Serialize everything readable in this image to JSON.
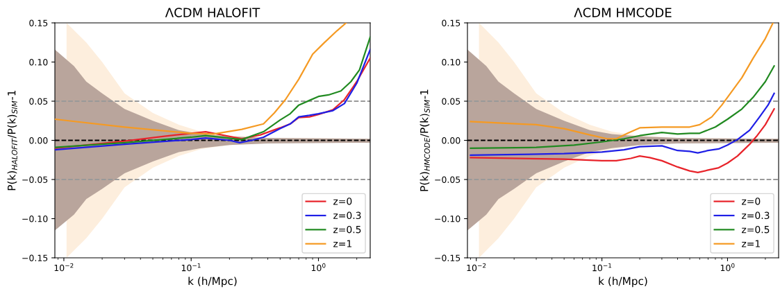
{
  "chart_data": [
    {
      "type": "line",
      "title": "ΛCDM HALOFIT",
      "xlabel": "k (h/Mpc)",
      "ylabel": "P(k)$_{HALOFIT}$/P(k)$_{SIM}$-1",
      "log": "x",
      "xlim": [
        0.0085,
        2.55
      ],
      "ylim": [
        -0.15,
        0.15
      ],
      "xticks": [
        {
          "value": 0.01,
          "label": "10$^{−2}$"
        },
        {
          "value": 0.1,
          "label": "10$^{−1}$"
        },
        {
          "value": 1,
          "label": "10$^{0}$"
        }
      ],
      "yticks": [
        {
          "value": -0.15,
          "label": "−0.15"
        },
        {
          "value": -0.1,
          "label": "−0.10"
        },
        {
          "value": -0.05,
          "label": "−0.05"
        },
        {
          "value": 0,
          "label": "0.00"
        },
        {
          "value": 0.05,
          "label": "0.05"
        },
        {
          "value": 0.1,
          "label": "0.10"
        },
        {
          "value": 0.15,
          "label": "0.15"
        }
      ],
      "legend": "lower right",
      "grid": false,
      "ref_lines": [
        {
          "axis": "y",
          "value": 0,
          "color": "#000000",
          "line_style": "dashed"
        },
        {
          "axis": "y",
          "value": 0.05,
          "color": "#999999",
          "line_style": "dashed"
        },
        {
          "axis": "y",
          "value": -0.05,
          "color": "#999999",
          "line_style": "dashed"
        }
      ],
      "series": [
        {
          "type": "area",
          "color": "#fdeedd",
          "x": [
            0.0105,
            0.015,
            0.02,
            0.03,
            0.05,
            0.08,
            0.12,
            0.2,
            0.4,
            2.55,
            2.55,
            0.4,
            0.2,
            0.12,
            0.08,
            0.05,
            0.03,
            0.02,
            0.015,
            0.0105
          ],
          "values": [
            0.15,
            0.125,
            0.1,
            0.06,
            0.035,
            0.02,
            0.011,
            0.006,
            0.003,
            0.002,
            -0.002,
            -0.003,
            -0.006,
            -0.011,
            -0.02,
            -0.035,
            -0.06,
            -0.1,
            -0.125,
            -0.15
          ]
        },
        {
          "type": "area",
          "color": "#b9a59c",
          "x": [
            0.0085,
            0.012,
            0.015,
            0.02,
            0.03,
            0.05,
            0.08,
            0.12,
            0.2,
            0.4,
            2.55,
            2.55,
            0.4,
            0.2,
            0.12,
            0.08,
            0.05,
            0.03,
            0.02,
            0.015,
            0.012,
            0.0085
          ],
          "values": [
            0.116,
            0.095,
            0.075,
            0.06,
            0.04,
            0.025,
            0.013,
            0.008,
            0.005,
            0.003,
            0.002,
            -0.003,
            -0.004,
            -0.006,
            -0.01,
            -0.015,
            -0.027,
            -0.042,
            -0.062,
            -0.075,
            -0.095,
            -0.115
          ]
        },
        {
          "name": "z=0",
          "color": "#e8232a",
          "x": [
            0.0085,
            0.03,
            0.06,
            0.13,
            0.25,
            0.35,
            0.5,
            0.6,
            0.7,
            0.85,
            1.0,
            1.3,
            1.6,
            2.0,
            2.55
          ],
          "values": [
            -0.01,
            -0.001,
            0.005,
            0.011,
            0.002,
            0.007,
            0.016,
            0.021,
            0.029,
            0.03,
            0.033,
            0.039,
            0.052,
            0.075,
            0.105
          ]
        },
        {
          "name": "z=0.3",
          "color": "#1f1fe6",
          "x": [
            0.0085,
            0.03,
            0.1,
            0.13,
            0.2,
            0.24,
            0.3,
            0.37,
            0.5,
            0.6,
            0.7,
            0.85,
            1.0,
            1.3,
            1.6,
            2.0,
            2.55
          ],
          "values": [
            -0.012,
            -0.005,
            0.001,
            0.003,
            0.0,
            -0.003,
            0.0,
            0.004,
            0.015,
            0.021,
            0.03,
            0.032,
            0.034,
            0.038,
            0.047,
            0.073,
            0.116
          ]
        },
        {
          "name": "z=0.5",
          "color": "#218a21",
          "x": [
            0.0085,
            0.03,
            0.1,
            0.13,
            0.25,
            0.37,
            0.5,
            0.6,
            0.7,
            0.85,
            1.0,
            1.2,
            1.5,
            1.8,
            2.1,
            2.55
          ],
          "values": [
            -0.009,
            -0.003,
            0.004,
            0.006,
            0.001,
            0.011,
            0.026,
            0.034,
            0.045,
            0.051,
            0.056,
            0.058,
            0.063,
            0.075,
            0.09,
            0.132
          ]
        },
        {
          "name": "z=1",
          "color": "#f59a23",
          "x": [
            0.0085,
            0.03,
            0.1,
            0.15,
            0.25,
            0.37,
            0.45,
            0.55,
            0.7,
            0.9,
            1.1,
            1.4,
            1.65
          ],
          "values": [
            0.027,
            0.017,
            0.009,
            0.008,
            0.014,
            0.021,
            0.035,
            0.052,
            0.078,
            0.11,
            0.124,
            0.14,
            0.15
          ]
        }
      ]
    },
    {
      "type": "line",
      "title": "ΛCDM HMCODE",
      "xlabel": "k (h/Mpc)",
      "ylabel": "P(k)$_{HMCODE}$/P(k)$_{SIM}$-1",
      "log": "x",
      "xlim": [
        0.0085,
        2.55
      ],
      "ylim": [
        -0.15,
        0.15
      ],
      "xticks": [
        {
          "value": 0.01,
          "label": "10$^{−2}$"
        },
        {
          "value": 0.1,
          "label": "10$^{−1}$"
        },
        {
          "value": 1,
          "label": "10$^{0}$"
        }
      ],
      "yticks": [
        {
          "value": -0.15,
          "label": "−0.15"
        },
        {
          "value": -0.1,
          "label": "−0.10"
        },
        {
          "value": -0.05,
          "label": "−0.05"
        },
        {
          "value": 0,
          "label": "0.00"
        },
        {
          "value": 0.05,
          "label": "0.05"
        },
        {
          "value": 0.1,
          "label": "0.10"
        },
        {
          "value": 0.15,
          "label": "0.15"
        }
      ],
      "legend": "lower right",
      "grid": false,
      "ref_lines": [
        {
          "axis": "y",
          "value": 0,
          "color": "#000000",
          "line_style": "dashed"
        },
        {
          "axis": "y",
          "value": 0.05,
          "color": "#999999",
          "line_style": "dashed"
        },
        {
          "axis": "y",
          "value": -0.05,
          "color": "#999999",
          "line_style": "dashed"
        }
      ],
      "series": [
        {
          "type": "area",
          "color": "#fdeedd",
          "x": [
            0.0105,
            0.015,
            0.02,
            0.03,
            0.05,
            0.08,
            0.12,
            0.2,
            0.4,
            2.55,
            2.55,
            0.4,
            0.2,
            0.12,
            0.08,
            0.05,
            0.03,
            0.02,
            0.015,
            0.0105
          ],
          "values": [
            0.15,
            0.125,
            0.1,
            0.06,
            0.035,
            0.02,
            0.011,
            0.006,
            0.003,
            0.002,
            -0.002,
            -0.003,
            -0.006,
            -0.011,
            -0.02,
            -0.035,
            -0.06,
            -0.1,
            -0.125,
            -0.15
          ]
        },
        {
          "type": "area",
          "color": "#b9a59c",
          "x": [
            0.0085,
            0.012,
            0.015,
            0.02,
            0.03,
            0.05,
            0.08,
            0.12,
            0.2,
            0.4,
            2.55,
            2.55,
            0.4,
            0.2,
            0.12,
            0.08,
            0.05,
            0.03,
            0.02,
            0.015,
            0.012,
            0.0085
          ],
          "values": [
            0.116,
            0.095,
            0.075,
            0.06,
            0.04,
            0.025,
            0.013,
            0.008,
            0.005,
            0.003,
            0.002,
            -0.003,
            -0.004,
            -0.006,
            -0.01,
            -0.015,
            -0.027,
            -0.042,
            -0.062,
            -0.075,
            -0.095,
            -0.115
          ]
        },
        {
          "name": "z=0",
          "color": "#e8232a",
          "x": [
            0.009,
            0.05,
            0.1,
            0.13,
            0.17,
            0.2,
            0.24,
            0.3,
            0.4,
            0.5,
            0.58,
            0.7,
            0.85,
            1.0,
            1.2,
            1.5,
            1.7,
            2.0,
            2.35
          ],
          "values": [
            -0.022,
            -0.024,
            -0.026,
            -0.026,
            -0.023,
            -0.02,
            -0.022,
            -0.026,
            -0.034,
            -0.039,
            -0.041,
            -0.038,
            -0.035,
            -0.029,
            -0.02,
            -0.005,
            0.005,
            0.02,
            0.04
          ]
        },
        {
          "name": "z=0.3",
          "color": "#1f1fe6",
          "x": [
            0.009,
            0.05,
            0.1,
            0.15,
            0.2,
            0.3,
            0.4,
            0.5,
            0.58,
            0.7,
            0.85,
            1.0,
            1.2,
            1.5,
            1.8,
            2.1,
            2.35
          ],
          "values": [
            -0.019,
            -0.017,
            -0.015,
            -0.012,
            -0.008,
            -0.007,
            -0.013,
            -0.014,
            -0.016,
            -0.013,
            -0.011,
            -0.006,
            0.001,
            0.013,
            0.03,
            0.045,
            0.06
          ]
        },
        {
          "name": "z=0.5",
          "color": "#218a21",
          "x": [
            0.009,
            0.03,
            0.06,
            0.1,
            0.15,
            0.2,
            0.3,
            0.4,
            0.5,
            0.6,
            0.8,
            1.0,
            1.3,
            1.6,
            2.0,
            2.35
          ],
          "values": [
            -0.01,
            -0.009,
            -0.006,
            -0.002,
            0.002,
            0.006,
            0.01,
            0.008,
            0.009,
            0.009,
            0.017,
            0.027,
            0.04,
            0.055,
            0.075,
            0.095
          ]
        },
        {
          "name": "z=1",
          "color": "#f59a23",
          "x": [
            0.009,
            0.03,
            0.05,
            0.08,
            0.11,
            0.13,
            0.16,
            0.2,
            0.3,
            0.4,
            0.5,
            0.6,
            0.75,
            0.9,
            1.0,
            1.3,
            1.6,
            2.0,
            2.3
          ],
          "values": [
            0.024,
            0.02,
            0.015,
            0.007,
            0.002,
            0.002,
            0.009,
            0.016,
            0.017,
            0.017,
            0.017,
            0.02,
            0.03,
            0.045,
            0.055,
            0.08,
            0.105,
            0.13,
            0.15
          ]
        }
      ]
    }
  ]
}
